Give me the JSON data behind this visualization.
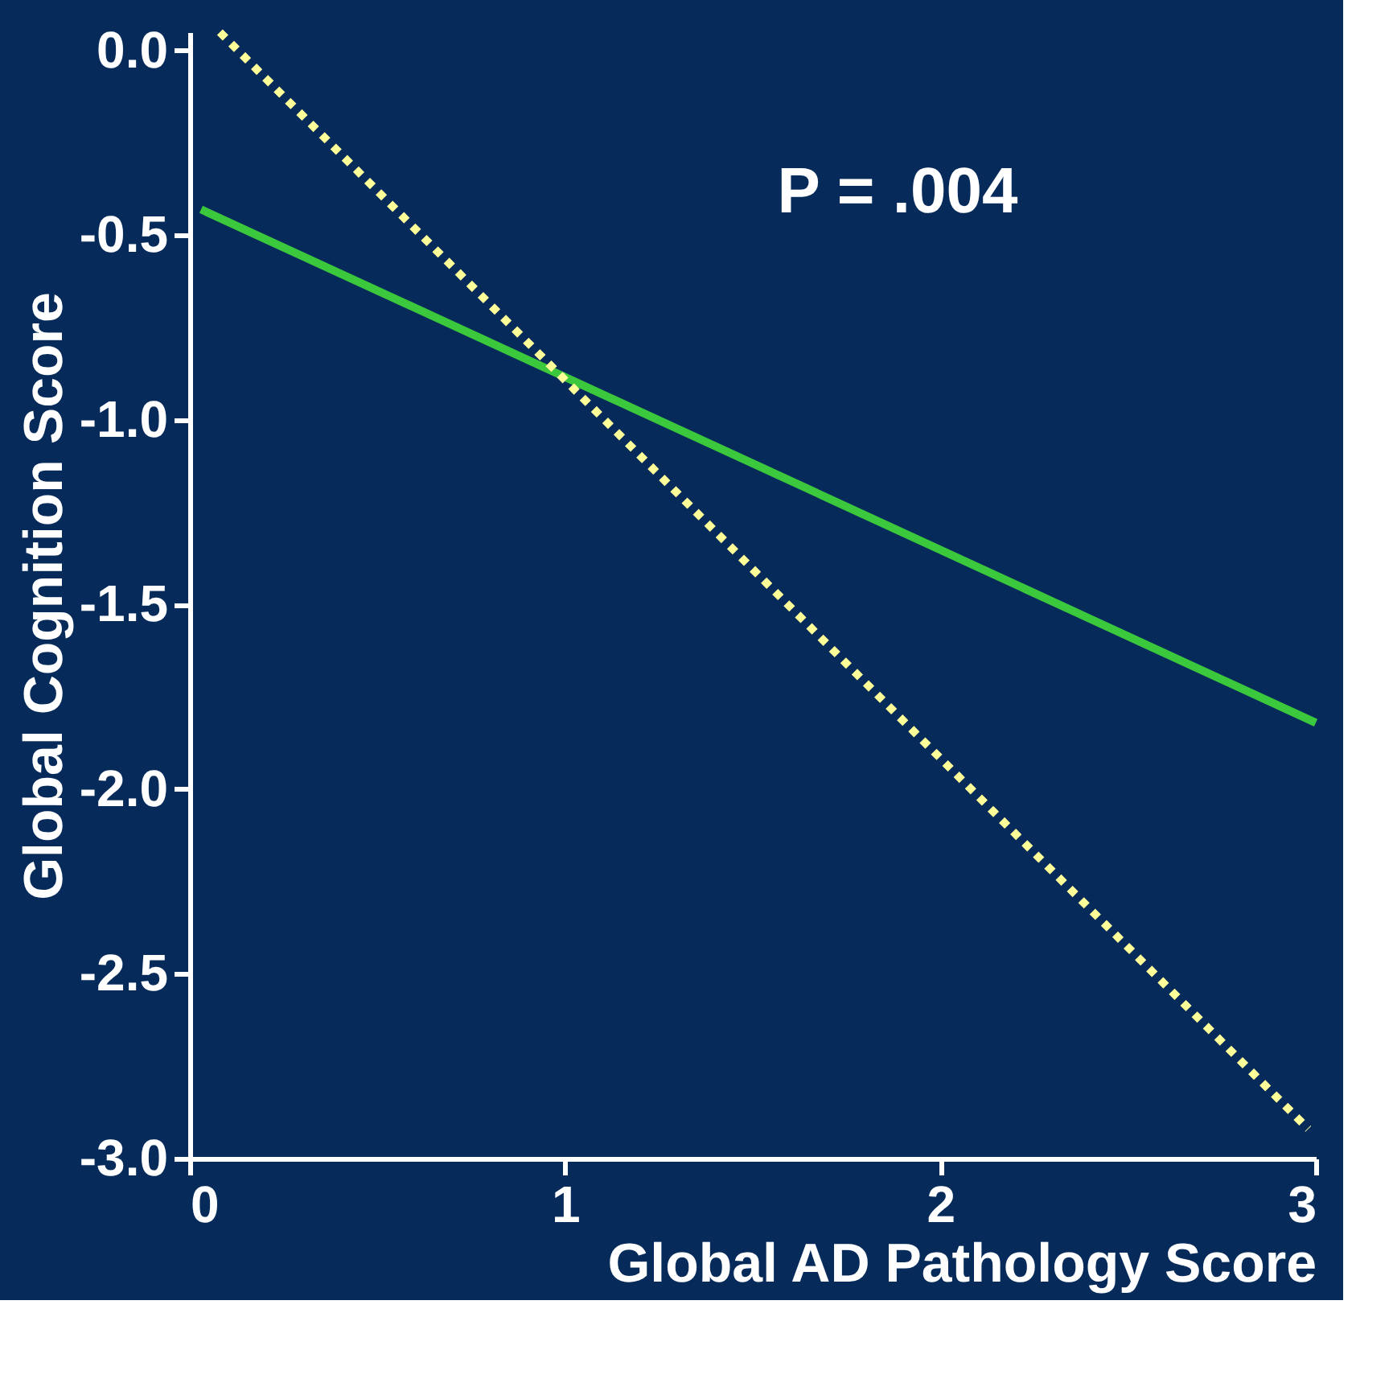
{
  "chart_data": {
    "type": "line",
    "xlabel": "Global AD Pathology Score",
    "ylabel": "Global Cognition Score",
    "annotations": [
      "P = .004"
    ],
    "xlim": [
      0,
      3
    ],
    "ylim": [
      -3,
      0.05
    ],
    "xticks": [
      {
        "value": 0,
        "label": "0"
      },
      {
        "value": 1,
        "label": "1"
      },
      {
        "value": 2,
        "label": "2"
      },
      {
        "value": 3,
        "label": "3"
      }
    ],
    "yticks": [
      {
        "value": -3,
        "label": "-3.0"
      },
      {
        "value": -2.5,
        "label": "-2.5"
      },
      {
        "value": -2,
        "label": "-2.0"
      },
      {
        "value": -1.5,
        "label": "-1.5"
      },
      {
        "value": -1,
        "label": "-1.0"
      },
      {
        "value": -0.5,
        "label": "-0.5"
      },
      {
        "value": 0,
        "label": "0.0"
      }
    ],
    "grid": false,
    "marker": "none",
    "series": [
      {
        "color": "#3cc83c",
        "line_style": "solid",
        "x": [
          0.03,
          3
        ],
        "values": [
          -0.43,
          -1.82
        ]
      },
      {
        "color": "#ffff99",
        "line_style": "dotted",
        "x": [
          0.08,
          2.98
        ],
        "values": [
          0.05,
          -2.92
        ]
      }
    ]
  }
}
